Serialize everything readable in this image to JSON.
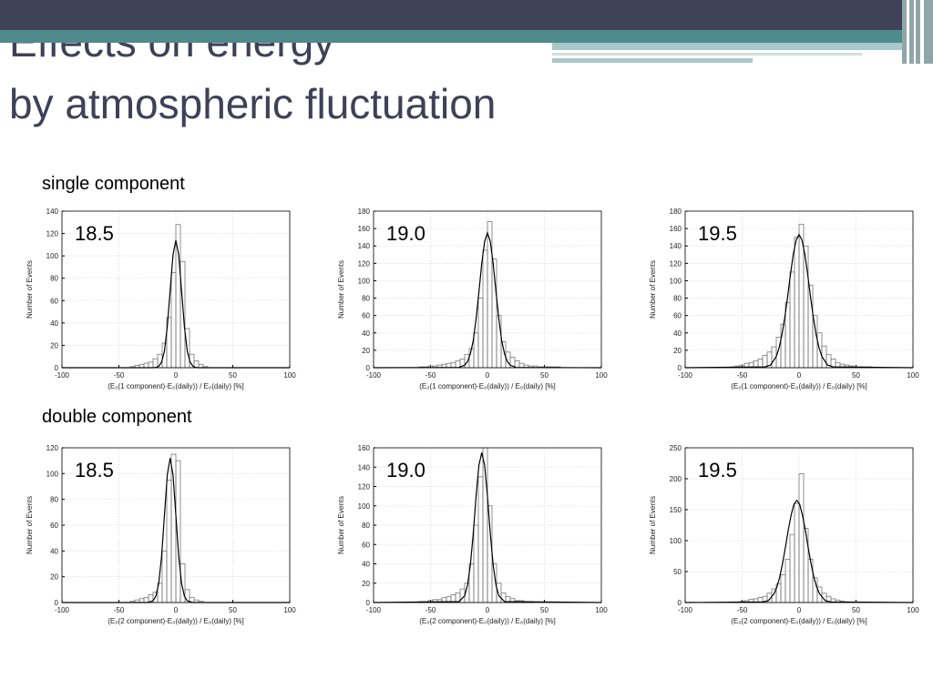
{
  "title": [
    "Effects on energy",
    "by atmospheric fluctuation"
  ],
  "sections": [
    "single component",
    "double component"
  ],
  "chart_data": [
    {
      "type": "histogram",
      "annotation": "18.5",
      "xlabel": "(E₀(1 component)-E₀(daily)) / E₀(daily) [%]",
      "ylabel": "Number of Events",
      "bins": [
        -40,
        -36,
        -32,
        -28,
        -24,
        -20,
        -16,
        -12,
        -8,
        -4,
        0,
        4,
        8,
        12,
        16,
        20,
        24,
        28
      ],
      "values": [
        1,
        2,
        3,
        4,
        5,
        8,
        12,
        22,
        45,
        85,
        128,
        95,
        35,
        12,
        6,
        3,
        1
      ],
      "fit": {
        "x": [
          -100,
          -20,
          -17.5,
          -15,
          -12.5,
          -10,
          -7.5,
          -5,
          -2.5,
          0,
          2.5,
          5,
          7.5,
          10,
          12.5,
          15,
          17.5,
          20,
          100
        ],
        "values": [
          0,
          0,
          0.2,
          1.3,
          5,
          15,
          37,
          69,
          101,
          114,
          101,
          69,
          37,
          15,
          5,
          1.3,
          0.2,
          0,
          0
        ]
      },
      "xlim": [
        -100,
        100
      ],
      "xticks": [
        -100,
        -50,
        0,
        50,
        100
      ],
      "ylim": [
        0,
        140
      ],
      "yticks": [
        0,
        20,
        40,
        60,
        80,
        100,
        120,
        140
      ],
      "grid": true
    },
    {
      "type": "histogram",
      "annotation": "19.0",
      "xlabel": "(E₀(1 component)-E₀(daily)) / E₀(daily) [%]",
      "ylabel": "Number of Events",
      "bins": [
        -60,
        -56,
        -52,
        -48,
        -44,
        -40,
        -36,
        -32,
        -28,
        -24,
        -20,
        -16,
        -12,
        -8,
        -4,
        0,
        4,
        8,
        12,
        16,
        20,
        24,
        28,
        32,
        36,
        40,
        44,
        48,
        52,
        56,
        60,
        64
      ],
      "values": [
        1,
        1,
        2,
        2,
        3,
        4,
        5,
        6,
        8,
        10,
        15,
        22,
        40,
        80,
        135,
        168,
        125,
        60,
        30,
        18,
        12,
        8,
        5,
        3,
        2,
        2,
        1,
        1,
        1,
        1,
        1
      ],
      "fit": {
        "x": [
          -100,
          -25,
          -20,
          -17.5,
          -15,
          -12.5,
          -10,
          -7.5,
          -5,
          -2.5,
          0,
          2.5,
          5,
          7.5,
          10,
          12.5,
          15,
          17.5,
          20,
          25,
          100
        ],
        "values": [
          0,
          0.3,
          3,
          7,
          16,
          31,
          56,
          87,
          120,
          145,
          155,
          145,
          120,
          87,
          56,
          31,
          16,
          7,
          3,
          0.3,
          0
        ]
      },
      "xlim": [
        -100,
        100
      ],
      "xticks": [
        -100,
        -50,
        0,
        50,
        100
      ],
      "ylim": [
        0,
        180
      ],
      "yticks": [
        0,
        20,
        40,
        60,
        80,
        100,
        120,
        140,
        160,
        180
      ],
      "grid": true
    },
    {
      "type": "histogram",
      "annotation": "19.5",
      "xlabel": "(E₀(1 component)-E₀(daily)) / E₀(daily) [%]",
      "ylabel": "Number of Events",
      "bins": [
        -60,
        -56,
        -52,
        -48,
        -44,
        -40,
        -36,
        -32,
        -28,
        -24,
        -20,
        -16,
        -12,
        -8,
        -4,
        0,
        4,
        8,
        12,
        16,
        20,
        24,
        28,
        32,
        36,
        40,
        44,
        48,
        52,
        56,
        60,
        64
      ],
      "values": [
        1,
        2,
        3,
        5,
        6,
        8,
        10,
        14,
        18,
        24,
        35,
        50,
        75,
        110,
        150,
        165,
        140,
        95,
        60,
        40,
        25,
        15,
        10,
        6,
        4,
        3,
        2,
        1,
        1,
        1,
        1
      ],
      "fit": {
        "x": [
          -100,
          -30,
          -25,
          -20,
          -17.5,
          -15,
          -12.5,
          -10,
          -7.5,
          -5,
          -2.5,
          0,
          2.5,
          5,
          7.5,
          10,
          12.5,
          15,
          17.5,
          20,
          25,
          30,
          100
        ],
        "values": [
          0,
          1,
          3,
          13,
          23,
          38,
          58,
          82,
          108,
          131,
          147,
          153,
          147,
          131,
          108,
          82,
          58,
          38,
          23,
          13,
          3,
          1,
          0
        ]
      },
      "xlim": [
        -100,
        100
      ],
      "xticks": [
        -100,
        -50,
        0,
        50,
        100
      ],
      "ylim": [
        0,
        180
      ],
      "yticks": [
        0,
        20,
        40,
        60,
        80,
        100,
        120,
        140,
        160,
        180
      ],
      "grid": true
    },
    {
      "type": "histogram",
      "annotation": "18.5",
      "xlabel": "(E₀(2 component)-E₀(daily)) / E₀(daily) [%]",
      "ylabel": "Number of Events",
      "bins": [
        -40,
        -36,
        -32,
        -28,
        -24,
        -20,
        -16,
        -12,
        -8,
        -4,
        0,
        4,
        8,
        12,
        16,
        20,
        24
      ],
      "values": [
        1,
        2,
        3,
        4,
        6,
        8,
        15,
        40,
        95,
        115,
        110,
        30,
        10,
        4,
        2,
        1
      ],
      "fit": {
        "x": [
          -100,
          -25,
          -20,
          -17.5,
          -15,
          -12.5,
          -10,
          -7.5,
          -5,
          -2.5,
          0,
          2.5,
          5,
          7.5,
          10,
          15,
          100
        ],
        "values": [
          0,
          0,
          1.3,
          5,
          15,
          36,
          68,
          99,
          112,
          99,
          68,
          36,
          15,
          5,
          1.3,
          0,
          0
        ]
      },
      "xlim": [
        -100,
        100
      ],
      "xticks": [
        -100,
        -50,
        0,
        50,
        100
      ],
      "ylim": [
        0,
        120
      ],
      "yticks": [
        0,
        20,
        40,
        60,
        80,
        100,
        120
      ],
      "grid": true
    },
    {
      "type": "histogram",
      "annotation": "19.0",
      "xlabel": "(E₀(2 component)-E₀(daily)) / E₀(daily) [%]",
      "ylabel": "Number of Events",
      "bins": [
        -60,
        -56,
        -52,
        -48,
        -44,
        -40,
        -36,
        -32,
        -28,
        -24,
        -20,
        -16,
        -12,
        -8,
        -4,
        0,
        4,
        8,
        12,
        16,
        20,
        24,
        28,
        32,
        36,
        40
      ],
      "values": [
        1,
        1,
        2,
        3,
        3,
        5,
        6,
        8,
        10,
        14,
        20,
        40,
        80,
        130,
        160,
        100,
        40,
        20,
        10,
        6,
        4,
        2,
        2,
        1,
        1
      ],
      "fit": {
        "x": [
          -100,
          -25,
          -20,
          -17.5,
          -15,
          -12.5,
          -10,
          -7.5,
          -5,
          -2.5,
          0,
          2.5,
          5,
          7.5,
          10,
          15,
          100
        ],
        "values": [
          0,
          1,
          7,
          18,
          39,
          71,
          110,
          142,
          155,
          142,
          110,
          71,
          39,
          18,
          7,
          1,
          0
        ]
      },
      "xlim": [
        -100,
        100
      ],
      "xticks": [
        -100,
        -50,
        0,
        50,
        100
      ],
      "ylim": [
        0,
        160
      ],
      "yticks": [
        0,
        20,
        40,
        60,
        80,
        100,
        120,
        140,
        160
      ],
      "grid": true
    },
    {
      "type": "histogram",
      "annotation": "19.5",
      "xlabel": "(E₀(2 component)-E₀(daily)) / E₀(daily) [%]",
      "ylabel": "Number of Events",
      "bins": [
        -60,
        -56,
        -52,
        -48,
        -44,
        -40,
        -36,
        -32,
        -28,
        -24,
        -20,
        -16,
        -12,
        -8,
        -4,
        0,
        4,
        8,
        12,
        16,
        20,
        24,
        28,
        32,
        36,
        40,
        44
      ],
      "values": [
        1,
        1,
        2,
        3,
        5,
        6,
        8,
        10,
        15,
        22,
        30,
        45,
        70,
        110,
        160,
        208,
        120,
        70,
        40,
        25,
        15,
        10,
        6,
        4,
        2,
        1
      ],
      "fit": {
        "x": [
          -100,
          -32,
          -27,
          -22,
          -19.5,
          -17,
          -14.5,
          -12,
          -9.5,
          -7,
          -4.5,
          -2,
          0.5,
          3,
          5.5,
          8,
          10.5,
          13,
          15.5,
          18,
          23,
          28,
          100
        ],
        "values": [
          0,
          1,
          3,
          14,
          25,
          41,
          63,
          89,
          117,
          141,
          159,
          165,
          159,
          141,
          117,
          89,
          63,
          41,
          25,
          14,
          3,
          1,
          0
        ]
      },
      "xlim": [
        -100,
        100
      ],
      "xticks": [
        -100,
        -50,
        0,
        50,
        100
      ],
      "ylim": [
        0,
        250
      ],
      "yticks": [
        0,
        50,
        100,
        150,
        200,
        250
      ],
      "grid": true
    }
  ]
}
